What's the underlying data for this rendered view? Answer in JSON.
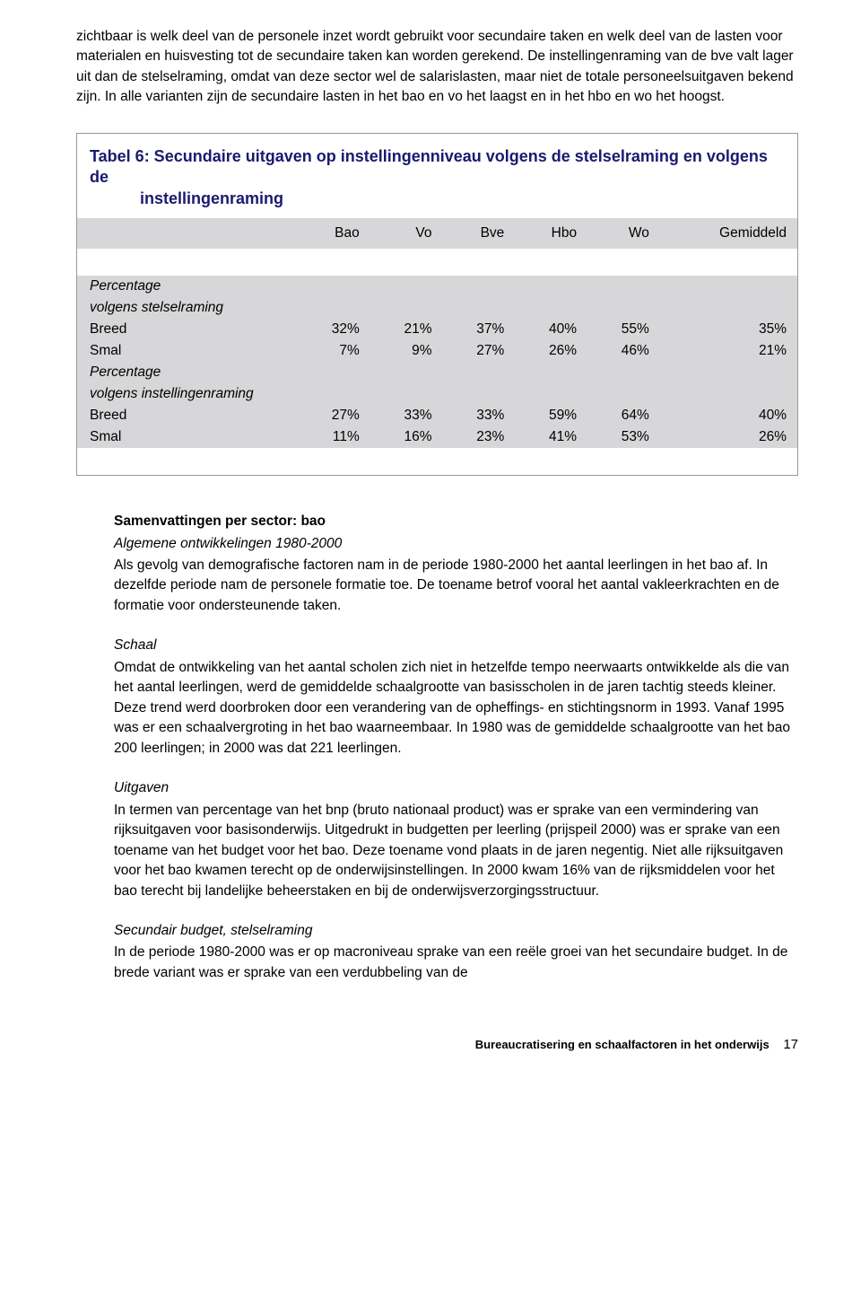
{
  "intro": "zichtbaar is welk deel van de personele inzet wordt gebruikt voor secundaire taken en welk deel van de lasten voor materialen en huisvesting  tot de secundaire taken kan worden gerekend. De instellingenraming van de bve valt lager uit dan de stelselraming, omdat van deze sector wel de salarislasten, maar niet de totale personeelsuitgaven bekend zijn. In alle varianten zijn de secundaire lasten in het bao en vo het laagst en in het hbo en wo het hoogst.",
  "table": {
    "title_line1": "Tabel 6: Secundaire uitgaven op instellingenniveau volgens de stelselraming en volgens de",
    "title_line2": "instellingenraming",
    "columns": [
      "",
      "Bao",
      "Vo",
      "Bve",
      "Hbo",
      "Wo",
      "Gemiddeld"
    ],
    "section1_label": "Percentage volgens stelselraming",
    "section2_label": "Percentage volgens instellingenraming",
    "rows": [
      {
        "label": "Breed",
        "vals": [
          "32%",
          "21%",
          "37%",
          "40%",
          "55%",
          "35%"
        ]
      },
      {
        "label": "Smal",
        "vals": [
          "7%",
          "9%",
          "27%",
          "26%",
          "46%",
          "21%"
        ]
      },
      {
        "label": "Breed",
        "vals": [
          "27%",
          "33%",
          "33%",
          "59%",
          "64%",
          "40%"
        ]
      },
      {
        "label": "Smal",
        "vals": [
          "11%",
          "16%",
          "23%",
          "41%",
          "53%",
          "26%"
        ]
      }
    ],
    "header_bg": "#d7d7d9",
    "title_color": "#1a1a6f"
  },
  "sections": {
    "h1": "Samenvattingen per sector: bao",
    "sub1": "Algemene ontwikkelingen 1980-2000",
    "p1": "Als gevolg van demografische factoren nam in de periode 1980-2000 het aantal leerlingen in het bao af. In dezelfde periode nam de personele formatie toe. De toename betrof vooral het aantal vakleerkrachten en de formatie voor ondersteunende taken.",
    "h2": "Schaal",
    "p2": "Omdat de ontwikkeling van het aantal scholen zich niet in hetzelfde tempo neerwaarts ontwikkelde als die van het aantal leerlingen, werd de gemiddelde schaalgrootte van basisscholen in de jaren tachtig steeds kleiner. Deze trend werd doorbroken door een verandering van de opheffings- en stichtingsnorm in 1993. Vanaf 1995 was er een schaalvergroting in het bao waarneembaar. In 1980 was de gemiddelde schaalgrootte van het bao 200 leerlingen; in 2000 was dat 221 leerlingen.",
    "h3": "Uitgaven",
    "p3": "In termen van percentage van het bnp (bruto nationaal product) was er sprake van een vermindering van rijksuitgaven voor basisonderwijs. Uitgedrukt in budgetten per leerling (prijspeil 2000) was er sprake van een toename van het budget voor het bao. Deze toename vond plaats in de jaren negentig. Niet alle rijksuitgaven voor het bao kwamen terecht op de onderwijsinstellingen. In 2000 kwam 16% van de rijksmiddelen voor het bao terecht bij landelijke beheerstaken en bij de onderwijsverzorgingsstructuur.",
    "h4": "Secundair budget, stelselraming",
    "p4": "In de periode 1980-2000 was er op macroniveau sprake van een reële groei van het secundaire budget. In de brede variant was er sprake van een verdubbeling van de"
  },
  "footer": {
    "title": "Bureaucratisering en schaalfactoren in het onderwijs",
    "page": "17"
  }
}
